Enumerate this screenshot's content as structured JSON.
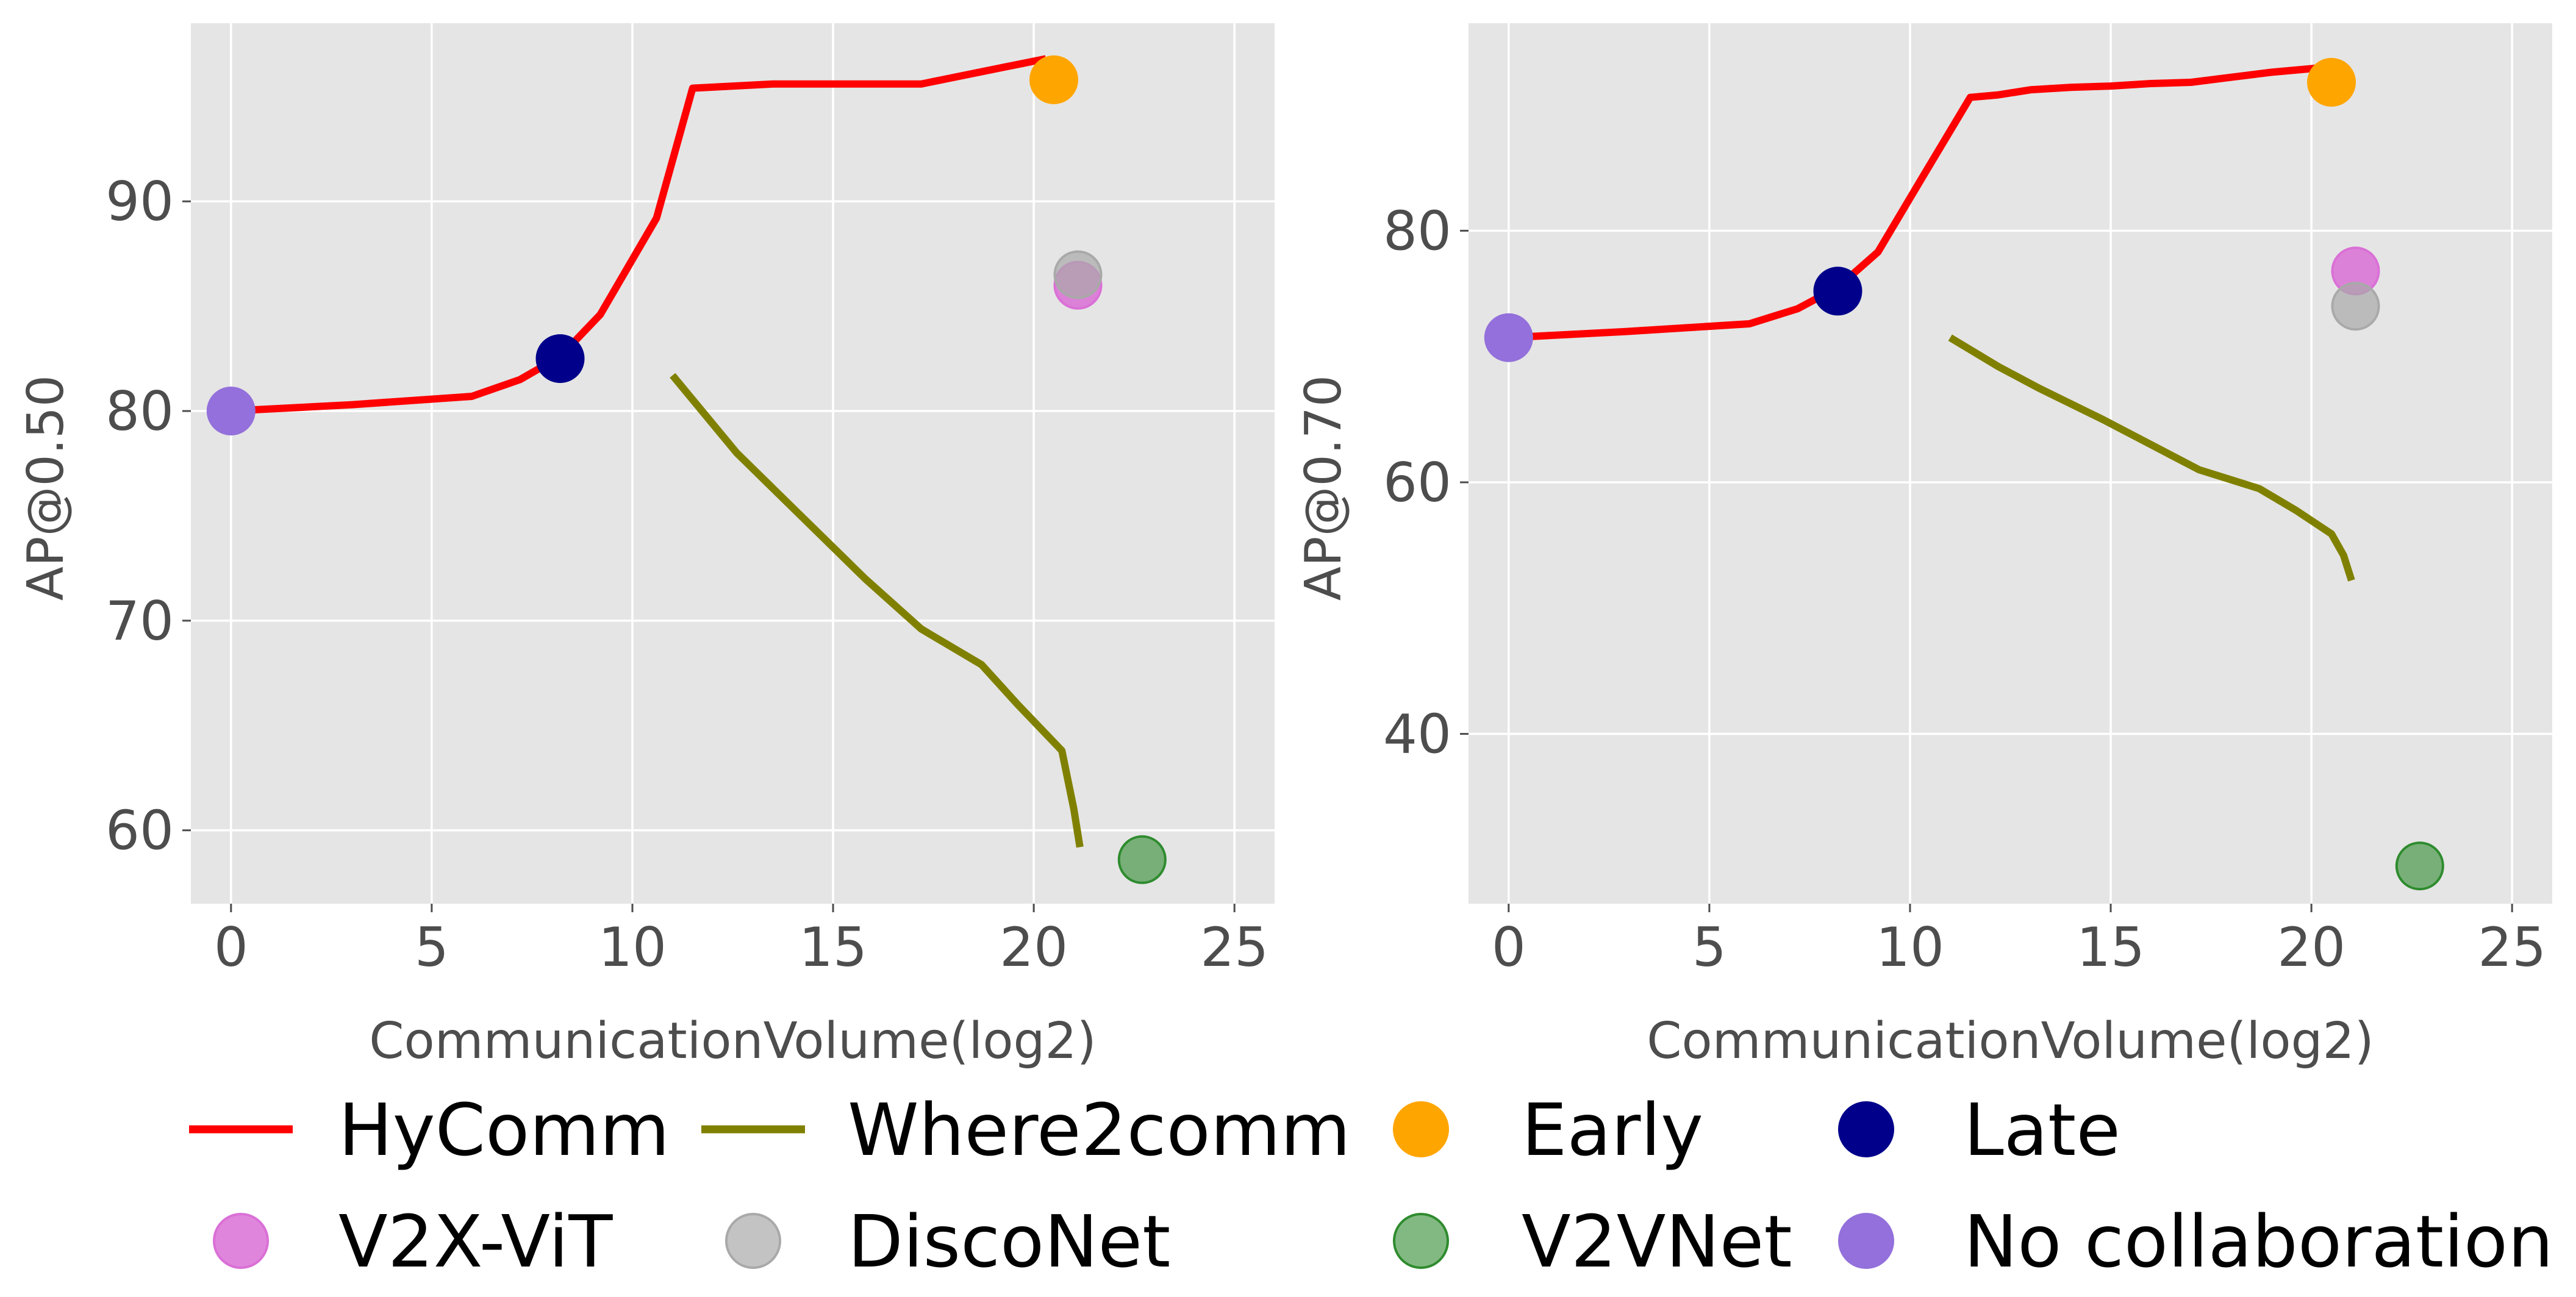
{
  "chart_data": [
    {
      "type": "line",
      "xlabel": "CommunicationVolume(log2)",
      "ylabel": "AP@0.50",
      "xlim": [
        -1,
        26
      ],
      "ylim": [
        56.5,
        98.5
      ],
      "xticks": [
        0,
        5,
        10,
        15,
        20,
        25
      ],
      "xtick_labels": [
        "0",
        "5",
        "10",
        "15",
        "20",
        "25"
      ],
      "yticks": [
        60,
        70,
        80,
        90
      ],
      "ytick_labels": [
        "60",
        "70",
        "80",
        "90"
      ],
      "grid": true,
      "series": [
        {
          "name": "HyComm",
          "type": "line",
          "color": "#ff0000",
          "x": [
            0,
            3,
            6,
            7.2,
            8.2,
            9.2,
            10.6,
            11.5,
            13.5,
            15,
            17.2,
            19,
            20.3
          ],
          "y": [
            80,
            80.3,
            80.7,
            81.5,
            82.6,
            84.6,
            89.2,
            95.4,
            95.6,
            95.6,
            95.6,
            96.3,
            96.8
          ]
        },
        {
          "name": "Where2comm",
          "type": "line",
          "color": "#808000",
          "x": [
            11,
            12.6,
            14.2,
            15.8,
            17.2,
            18.7,
            19.6,
            20.7,
            21,
            21.15
          ],
          "y": [
            81.7,
            78,
            75,
            72,
            69.6,
            67.9,
            66,
            63.8,
            61,
            59.2
          ]
        }
      ],
      "points": [
        {
          "name": "Early",
          "x": 20.5,
          "y": 95.8,
          "color": "#ffa500",
          "opacity": 1
        },
        {
          "name": "Late",
          "x": 8.2,
          "y": 82.5,
          "color": "#00008b",
          "opacity": 1
        },
        {
          "name": "V2X-ViT",
          "x": 21.1,
          "y": 86,
          "color": "#da70d6",
          "opacity": 0.85
        },
        {
          "name": "DiscoNet",
          "x": 21.1,
          "y": 86.5,
          "color": "#a9a9a9",
          "opacity": 0.7
        },
        {
          "name": "V2VNet",
          "x": 22.7,
          "y": 58.6,
          "color": "#2e8b2e",
          "opacity": 0.6
        },
        {
          "name": "No collaboration",
          "x": 0,
          "y": 80,
          "color": "#9370db",
          "opacity": 1
        }
      ]
    },
    {
      "type": "line",
      "xlabel": "CommunicationVolume(log2)",
      "ylabel": "AP@0.70",
      "xlim": [
        -1,
        26
      ],
      "ylim": [
        26.5,
        96.5
      ],
      "xticks": [
        0,
        5,
        10,
        15,
        20,
        25
      ],
      "xtick_labels": [
        "0",
        "5",
        "10",
        "15",
        "20",
        "25"
      ],
      "yticks": [
        40,
        60,
        80
      ],
      "ytick_labels": [
        "40",
        "60",
        "80"
      ],
      "grid": true,
      "series": [
        {
          "name": "HyComm",
          "type": "line",
          "color": "#ff0000",
          "x": [
            0,
            3,
            6,
            7.2,
            8.2,
            9.2,
            10.3,
            11.5,
            12.2,
            13,
            14,
            15,
            16,
            17,
            18,
            19,
            20.4
          ],
          "y": [
            71.5,
            72,
            72.6,
            73.8,
            75.5,
            78.3,
            84.2,
            90.6,
            90.8,
            91.2,
            91.4,
            91.5,
            91.7,
            91.8,
            92.2,
            92.6,
            93
          ]
        },
        {
          "name": "Where2comm",
          "type": "line",
          "color": "#808000",
          "x": [
            11,
            12.2,
            13.2,
            14.8,
            16,
            17.2,
            18.7,
            19.6,
            20.5,
            20.8,
            21
          ],
          "y": [
            71.5,
            69.2,
            67.5,
            65,
            63,
            61,
            59.5,
            57.8,
            55.9,
            54.2,
            52.2
          ]
        }
      ],
      "points": [
        {
          "name": "Early",
          "x": 20.5,
          "y": 91.8,
          "color": "#ffa500",
          "opacity": 1
        },
        {
          "name": "Late",
          "x": 8.2,
          "y": 75.2,
          "color": "#00008b",
          "opacity": 1
        },
        {
          "name": "V2X-ViT",
          "x": 21.1,
          "y": 76.8,
          "color": "#da70d6",
          "opacity": 0.85
        },
        {
          "name": "DiscoNet",
          "x": 21.1,
          "y": 74,
          "color": "#a9a9a9",
          "opacity": 0.7
        },
        {
          "name": "V2VNet",
          "x": 22.7,
          "y": 29.5,
          "color": "#2e8b2e",
          "opacity": 0.6
        },
        {
          "name": "No collaboration",
          "x": 0,
          "y": 71.5,
          "color": "#9370db",
          "opacity": 1
        }
      ]
    }
  ],
  "legend": {
    "position": "bottom",
    "entries": [
      {
        "label": "HyComm",
        "kind": "line",
        "color": "#ff0000"
      },
      {
        "label": "Where2comm",
        "kind": "line",
        "color": "#808000"
      },
      {
        "label": "Early",
        "kind": "marker",
        "color": "#ffa500",
        "opacity": 1
      },
      {
        "label": "Late",
        "kind": "marker",
        "color": "#00008b",
        "opacity": 1
      },
      {
        "label": "V2X-ViT",
        "kind": "marker",
        "color": "#da70d6",
        "opacity": 0.85
      },
      {
        "label": "DiscoNet",
        "kind": "marker",
        "color": "#a9a9a9",
        "opacity": 0.7
      },
      {
        "label": "V2VNet",
        "kind": "marker",
        "color": "#2e8b2e",
        "opacity": 0.6
      },
      {
        "label": "No collaboration",
        "kind": "marker",
        "color": "#9370db",
        "opacity": 1
      }
    ]
  },
  "colors": {
    "panel_background": "#e5e5e5",
    "grid": "#ffffff"
  }
}
